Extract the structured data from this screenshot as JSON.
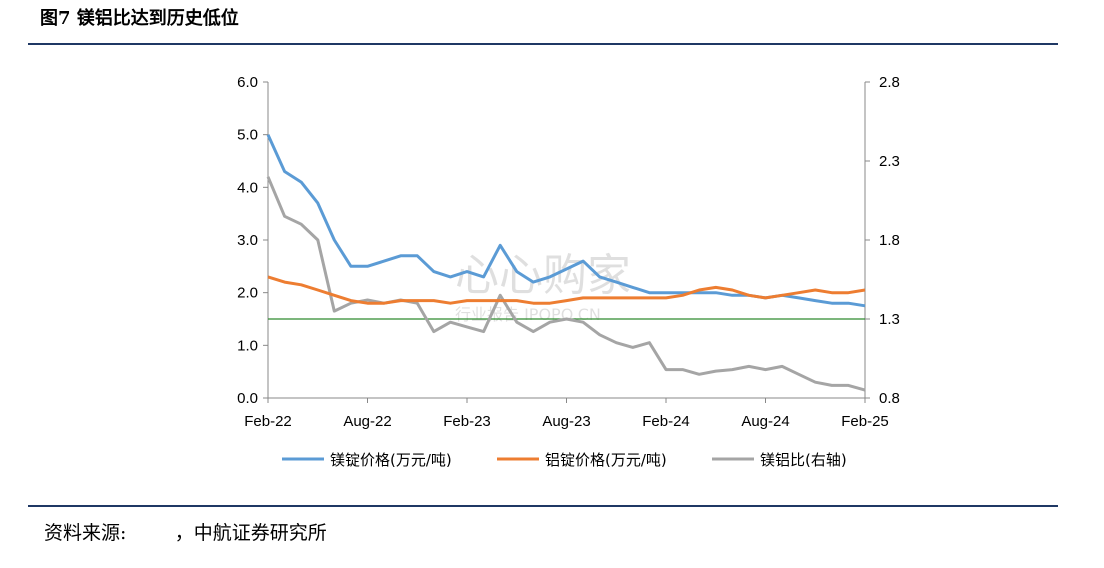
{
  "header": {
    "title": "图7  镁铝比达到历史低位"
  },
  "footer": {
    "source_label": "资料来源:",
    "source_text": "，中航证券研究所"
  },
  "watermark": {
    "main": "心心购家",
    "sub": "行业报告 IPOPO.CN"
  },
  "colors": {
    "mg": "#5b9bd5",
    "al": "#ed7d31",
    "ratio": "#a5a5a5",
    "ref": "#2e8b2e",
    "rule": "#1f3864"
  },
  "chart_data": {
    "type": "line",
    "x_ticks": [
      "Feb-22",
      "Aug-22",
      "Feb-23",
      "Aug-23",
      "Feb-24",
      "Aug-24",
      "Feb-25"
    ],
    "y_left": {
      "ticks": [
        "0.0",
        "1.0",
        "2.0",
        "3.0",
        "4.0",
        "5.0",
        "6.0"
      ],
      "range": [
        0,
        6
      ]
    },
    "y_right": {
      "ticks": [
        "0.8",
        "1.3",
        "1.8",
        "2.3",
        "2.8"
      ],
      "range": [
        0.8,
        2.8
      ]
    },
    "reference_line": {
      "axis": "right",
      "value": 1.3
    },
    "legend": [
      "镁锭价格(万元/吨)",
      "铝锭价格(万元/吨)",
      "镁铝比(右轴)"
    ],
    "series": [
      {
        "name": "镁锭价格(万元/吨)",
        "axis": "left",
        "x": [
          "2022-02",
          "2022-03",
          "2022-04",
          "2022-05",
          "2022-06",
          "2022-07",
          "2022-08",
          "2022-09",
          "2022-10",
          "2022-11",
          "2022-12",
          "2023-01",
          "2023-02",
          "2023-03",
          "2023-04",
          "2023-05",
          "2023-06",
          "2023-07",
          "2023-08",
          "2023-09",
          "2023-10",
          "2023-11",
          "2023-12",
          "2024-01",
          "2024-02",
          "2024-03",
          "2024-04",
          "2024-05",
          "2024-06",
          "2024-07",
          "2024-08",
          "2024-09",
          "2024-10",
          "2024-11",
          "2024-12",
          "2025-01",
          "2025-02"
        ],
        "values": [
          5.0,
          4.3,
          4.1,
          3.7,
          3.0,
          2.5,
          2.5,
          2.6,
          2.7,
          2.7,
          2.4,
          2.3,
          2.4,
          2.3,
          2.9,
          2.4,
          2.2,
          2.3,
          2.45,
          2.6,
          2.3,
          2.2,
          2.1,
          2.0,
          2.0,
          2.0,
          2.0,
          2.0,
          1.95,
          1.95,
          1.9,
          1.95,
          1.9,
          1.85,
          1.8,
          1.8,
          1.75
        ]
      },
      {
        "name": "铝锭价格(万元/吨)",
        "axis": "left",
        "x": [
          "2022-02",
          "2022-03",
          "2022-04",
          "2022-05",
          "2022-06",
          "2022-07",
          "2022-08",
          "2022-09",
          "2022-10",
          "2022-11",
          "2022-12",
          "2023-01",
          "2023-02",
          "2023-03",
          "2023-04",
          "2023-05",
          "2023-06",
          "2023-07",
          "2023-08",
          "2023-09",
          "2023-10",
          "2023-11",
          "2023-12",
          "2024-01",
          "2024-02",
          "2024-03",
          "2024-04",
          "2024-05",
          "2024-06",
          "2024-07",
          "2024-08",
          "2024-09",
          "2024-10",
          "2024-11",
          "2024-12",
          "2025-01",
          "2025-02"
        ],
        "values": [
          2.3,
          2.2,
          2.15,
          2.05,
          1.95,
          1.85,
          1.8,
          1.8,
          1.85,
          1.85,
          1.85,
          1.8,
          1.85,
          1.85,
          1.85,
          1.85,
          1.8,
          1.8,
          1.85,
          1.9,
          1.9,
          1.9,
          1.9,
          1.9,
          1.9,
          1.95,
          2.05,
          2.1,
          2.05,
          1.95,
          1.9,
          1.95,
          2.0,
          2.05,
          2.0,
          2.0,
          2.05
        ]
      },
      {
        "name": "镁铝比(右轴)",
        "axis": "right",
        "x": [
          "2022-02",
          "2022-03",
          "2022-04",
          "2022-05",
          "2022-06",
          "2022-07",
          "2022-08",
          "2022-09",
          "2022-10",
          "2022-11",
          "2022-12",
          "2023-01",
          "2023-02",
          "2023-03",
          "2023-04",
          "2023-05",
          "2023-06",
          "2023-07",
          "2023-08",
          "2023-09",
          "2023-10",
          "2023-11",
          "2023-12",
          "2024-01",
          "2024-02",
          "2024-03",
          "2024-04",
          "2024-05",
          "2024-06",
          "2024-07",
          "2024-08",
          "2024-09",
          "2024-10",
          "2024-11",
          "2024-12",
          "2025-01",
          "2025-02"
        ],
        "values": [
          2.2,
          1.95,
          1.9,
          1.8,
          1.35,
          1.4,
          1.42,
          1.4,
          1.42,
          1.4,
          1.22,
          1.28,
          1.25,
          1.22,
          1.45,
          1.28,
          1.22,
          1.28,
          1.3,
          1.28,
          1.2,
          1.15,
          1.12,
          1.15,
          0.98,
          0.98,
          0.95,
          0.97,
          0.98,
          1.0,
          0.98,
          1.0,
          0.95,
          0.9,
          0.88,
          0.88,
          0.85
        ]
      }
    ]
  }
}
